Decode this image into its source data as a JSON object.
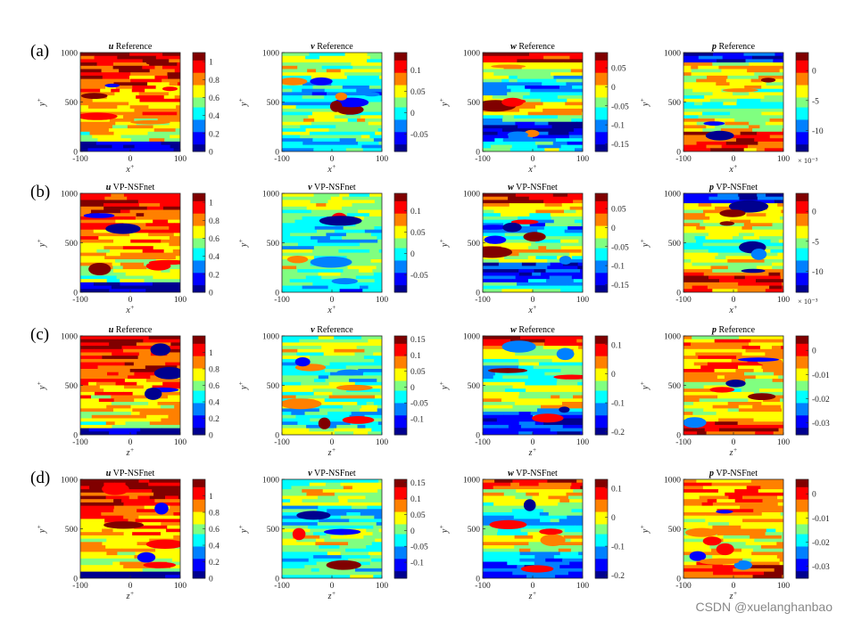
{
  "figure": {
    "colormap": [
      "#00008f",
      "#0000ff",
      "#0080ff",
      "#00ffff",
      "#80ff80",
      "#ffff00",
      "#ff8000",
      "#ff0000",
      "#800000"
    ],
    "watermark": "CSDN @xuelanghanbao"
  },
  "chart_data": [
    {
      "row": "(a)",
      "col": 0,
      "type": "heatmap",
      "var": "u",
      "title": "Reference",
      "xlabel": "x",
      "ylabel": "y",
      "xlim": [
        -100,
        100
      ],
      "ylim": [
        0,
        1000
      ],
      "clim": [
        0,
        1.1
      ],
      "cticks": [
        "0",
        "0.2",
        "0.4",
        "0.6",
        "0.8",
        "1"
      ],
      "ctick_values": [
        0,
        0.2,
        0.4,
        0.6,
        0.8,
        1
      ],
      "exponent": ""
    },
    {
      "row": "(a)",
      "col": 1,
      "type": "heatmap",
      "var": "v",
      "title": "Reference",
      "xlabel": "x",
      "ylabel": "y",
      "xlim": [
        -100,
        100
      ],
      "ylim": [
        0,
        1000
      ],
      "clim": [
        -0.09,
        0.14
      ],
      "cticks": [
        "-0.05",
        "0",
        "0.05",
        "0.1"
      ],
      "ctick_values": [
        -0.05,
        0,
        0.05,
        0.1
      ],
      "exponent": ""
    },
    {
      "row": "(a)",
      "col": 2,
      "type": "heatmap",
      "var": "w",
      "title": "Reference",
      "xlabel": "x",
      "ylabel": "y",
      "xlim": [
        -100,
        100
      ],
      "ylim": [
        0,
        1000
      ],
      "clim": [
        -0.17,
        0.09
      ],
      "cticks": [
        "0.05",
        "0",
        "-0.05",
        "-0.1",
        "-0.15"
      ],
      "ctick_values": [
        0.05,
        0,
        -0.05,
        -0.1,
        -0.15
      ],
      "exponent": ""
    },
    {
      "row": "(a)",
      "col": 3,
      "type": "heatmap",
      "var": "p",
      "title": "Reference",
      "xlabel": "x",
      "ylabel": "y",
      "xlim": [
        -100,
        100
      ],
      "ylim": [
        0,
        1000
      ],
      "clim": [
        -13.5,
        3
      ],
      "cticks": [
        "0",
        "-5",
        "-10"
      ],
      "ctick_values": [
        0,
        -5,
        -10
      ],
      "exponent": "× 10⁻³"
    },
    {
      "row": "(b)",
      "col": 0,
      "type": "heatmap",
      "var": "u",
      "title": "VP-NSFnet",
      "xlabel": "x",
      "ylabel": "y",
      "xlim": [
        -100,
        100
      ],
      "ylim": [
        0,
        1000
      ],
      "clim": [
        0,
        1.1
      ],
      "cticks": [
        "0",
        "0.2",
        "0.4",
        "0.6",
        "0.8",
        "1"
      ],
      "ctick_values": [
        0,
        0.2,
        0.4,
        0.6,
        0.8,
        1
      ],
      "exponent": ""
    },
    {
      "row": "(b)",
      "col": 1,
      "type": "heatmap",
      "var": "v",
      "title": "VP-NSFnet",
      "xlabel": "x",
      "ylabel": "y",
      "xlim": [
        -100,
        100
      ],
      "ylim": [
        0,
        1000
      ],
      "clim": [
        -0.09,
        0.14
      ],
      "cticks": [
        "0.1",
        "0.05",
        "0",
        "-0.05"
      ],
      "ctick_values": [
        0.1,
        0.05,
        0,
        -0.05
      ],
      "exponent": ""
    },
    {
      "row": "(b)",
      "col": 2,
      "type": "heatmap",
      "var": "w",
      "title": "VP-NSFnet",
      "xlabel": "x",
      "ylabel": "y",
      "xlim": [
        -100,
        100
      ],
      "ylim": [
        0,
        1000
      ],
      "clim": [
        -0.17,
        0.09
      ],
      "cticks": [
        "0.05",
        "0",
        "-0.05",
        "-0.1",
        "-0.15"
      ],
      "ctick_values": [
        0.05,
        0,
        -0.05,
        -0.1,
        -0.15
      ],
      "exponent": ""
    },
    {
      "row": "(b)",
      "col": 3,
      "type": "heatmap",
      "var": "p",
      "title": "VP-NSFnet",
      "xlabel": "x",
      "ylabel": "y",
      "xlim": [
        -100,
        100
      ],
      "ylim": [
        0,
        1000
      ],
      "clim": [
        -13.5,
        3
      ],
      "cticks": [
        "0",
        "-5",
        "-10"
      ],
      "ctick_values": [
        0,
        -5,
        -10
      ],
      "exponent": "× 10⁻³"
    },
    {
      "row": "(c)",
      "col": 0,
      "type": "heatmap",
      "var": "u",
      "title": "Reference",
      "xlabel": "z",
      "ylabel": "y",
      "xlim": [
        -100,
        100
      ],
      "ylim": [
        0,
        1000
      ],
      "clim": [
        0,
        1.2
      ],
      "cticks": [
        "0",
        "0.2",
        "0.4",
        "0.6",
        "0.8",
        "1"
      ],
      "ctick_values": [
        0,
        0.2,
        0.4,
        0.6,
        0.8,
        1
      ],
      "exponent": ""
    },
    {
      "row": "(c)",
      "col": 1,
      "type": "heatmap",
      "var": "v",
      "title": "Reference",
      "xlabel": "z",
      "ylabel": "y",
      "xlim": [
        -100,
        100
      ],
      "ylim": [
        0,
        1000
      ],
      "clim": [
        -0.15,
        0.16
      ],
      "cticks": [
        "0.15",
        "0.1",
        "0.05",
        "0",
        "-0.05",
        "-0.1"
      ],
      "ctick_values": [
        0.15,
        0.1,
        0.05,
        0,
        -0.05,
        -0.1
      ],
      "exponent": ""
    },
    {
      "row": "(c)",
      "col": 2,
      "type": "heatmap",
      "var": "w",
      "title": "Reference",
      "xlabel": "z",
      "ylabel": "y",
      "xlim": [
        -100,
        100
      ],
      "ylim": [
        0,
        1000
      ],
      "clim": [
        -0.21,
        0.13
      ],
      "cticks": [
        "0.1",
        "0",
        "-0.1",
        "-0.2"
      ],
      "ctick_values": [
        0.1,
        0,
        -0.1,
        -0.2
      ],
      "exponent": ""
    },
    {
      "row": "(c)",
      "col": 3,
      "type": "heatmap",
      "var": "p",
      "title": "Reference",
      "xlabel": "z",
      "ylabel": "y",
      "xlim": [
        -100,
        100
      ],
      "ylim": [
        0,
        1000
      ],
      "clim": [
        -0.035,
        0.006
      ],
      "cticks": [
        "0",
        "-0.01",
        "-0.02",
        "-0.03"
      ],
      "ctick_values": [
        0,
        -0.01,
        -0.02,
        -0.03
      ],
      "exponent": ""
    },
    {
      "row": "(d)",
      "col": 0,
      "type": "heatmap",
      "var": "u",
      "title": "VP-NSFnet",
      "xlabel": "z",
      "ylabel": "y",
      "xlim": [
        -100,
        100
      ],
      "ylim": [
        0,
        1000
      ],
      "clim": [
        0,
        1.2
      ],
      "cticks": [
        "0",
        "0.2",
        "0.4",
        "0.6",
        "0.8",
        "1"
      ],
      "ctick_values": [
        0,
        0.2,
        0.4,
        0.6,
        0.8,
        1
      ],
      "exponent": ""
    },
    {
      "row": "(d)",
      "col": 1,
      "type": "heatmap",
      "var": "v",
      "title": "VP-NSFnet",
      "xlabel": "z",
      "ylabel": "y",
      "xlim": [
        -100,
        100
      ],
      "ylim": [
        0,
        1000
      ],
      "clim": [
        -0.15,
        0.16
      ],
      "cticks": [
        "0.15",
        "0.1",
        "0.05",
        "0",
        "-0.05",
        "-0.1"
      ],
      "ctick_values": [
        0.15,
        0.1,
        0.05,
        0,
        -0.05,
        -0.1
      ],
      "exponent": ""
    },
    {
      "row": "(d)",
      "col": 2,
      "type": "heatmap",
      "var": "w",
      "title": "VP-NSFnet",
      "xlabel": "z",
      "ylabel": "y",
      "xlim": [
        -100,
        100
      ],
      "ylim": [
        0,
        1000
      ],
      "clim": [
        -0.21,
        0.13
      ],
      "cticks": [
        "0.1",
        "0",
        "-0.1",
        "-0.2"
      ],
      "ctick_values": [
        0.1,
        0,
        -0.1,
        -0.2
      ],
      "exponent": ""
    },
    {
      "row": "(d)",
      "col": 3,
      "type": "heatmap",
      "var": "p",
      "title": "VP-NSFnet",
      "xlabel": "z",
      "ylabel": "y",
      "xlim": [
        -100,
        100
      ],
      "ylim": [
        0,
        1000
      ],
      "clim": [
        -0.035,
        0.006
      ],
      "cticks": [
        "0",
        "-0.01",
        "-0.02",
        "-0.03"
      ],
      "ctick_values": [
        0,
        -0.01,
        -0.02,
        -0.03
      ],
      "exponent": ""
    }
  ],
  "axis_ticks": {
    "x": [
      "-100",
      "0",
      "100"
    ],
    "x_values": [
      -100,
      0,
      100
    ],
    "y": [
      "0",
      "500",
      "1000"
    ],
    "y_values": [
      0,
      500,
      1000
    ]
  },
  "row_labels": [
    "(a)",
    "(b)",
    "(c)",
    "(d)"
  ]
}
